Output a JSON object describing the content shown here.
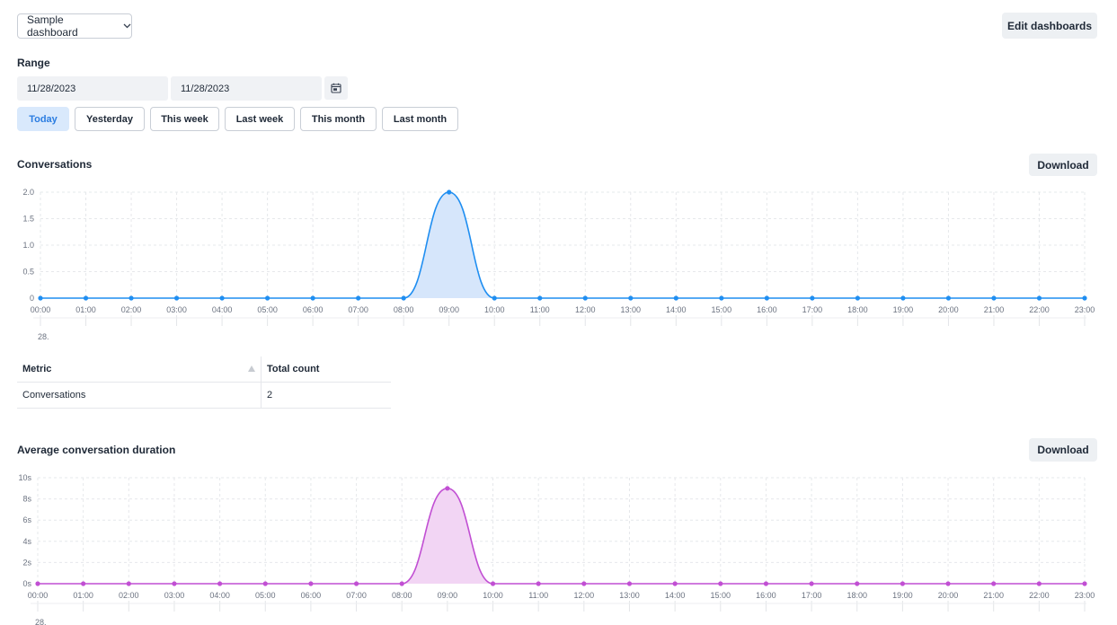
{
  "dashboard_select": {
    "label": "Sample dashboard"
  },
  "edit_dashboards_label": "Edit dashboards",
  "range": {
    "label": "Range",
    "from": "11/28/2023",
    "to": "11/28/2023",
    "presets": [
      "Today",
      "Yesterday",
      "This week",
      "Last week",
      "This month",
      "Last month"
    ],
    "active_preset": "Today"
  },
  "conversations": {
    "title": "Conversations",
    "download_label": "Download"
  },
  "metric_table": {
    "headers": [
      "Metric",
      "Total count"
    ],
    "rows": [
      [
        "Conversations",
        "2"
      ]
    ]
  },
  "avg_duration": {
    "title": "Average conversation duration",
    "download_label": "Download"
  },
  "colors": {
    "blue": "#1f8ef1",
    "blue_fill": "#d6e6fb",
    "purple": "#c14fd3",
    "purple_fill": "#f2d5f4",
    "active_bg": "#d9e9fc"
  },
  "chart_data": [
    {
      "type": "area",
      "x": [
        "00:00",
        "01:00",
        "02:00",
        "03:00",
        "04:00",
        "05:00",
        "06:00",
        "07:00",
        "08:00",
        "09:00",
        "10:00",
        "11:00",
        "12:00",
        "13:00",
        "14:00",
        "15:00",
        "16:00",
        "17:00",
        "18:00",
        "19:00",
        "20:00",
        "21:00",
        "22:00",
        "23:00"
      ],
      "series": [
        {
          "values": [
            0,
            0,
            0,
            0,
            0,
            0,
            0,
            0,
            0,
            2,
            0,
            0,
            0,
            0,
            0,
            0,
            0,
            0,
            0,
            0,
            0,
            0,
            0,
            0
          ]
        }
      ],
      "yticks": [
        "0",
        "0.5",
        "1.0",
        "1.5",
        "2.0"
      ],
      "ylim": [
        0,
        2
      ],
      "date_label": "28.",
      "grid": true
    },
    {
      "type": "area",
      "x": [
        "00:00",
        "01:00",
        "02:00",
        "03:00",
        "04:00",
        "05:00",
        "06:00",
        "07:00",
        "08:00",
        "09:00",
        "10:00",
        "11:00",
        "12:00",
        "13:00",
        "14:00",
        "15:00",
        "16:00",
        "17:00",
        "18:00",
        "19:00",
        "20:00",
        "21:00",
        "22:00",
        "23:00"
      ],
      "series": [
        {
          "values": [
            0,
            0,
            0,
            0,
            0,
            0,
            0,
            0,
            0,
            9,
            0,
            0,
            0,
            0,
            0,
            0,
            0,
            0,
            0,
            0,
            0,
            0,
            0,
            0
          ]
        }
      ],
      "yticks": [
        "0s",
        "2s",
        "4s",
        "6s",
        "8s",
        "10s"
      ],
      "ylim": [
        0,
        10
      ],
      "date_label": "28.",
      "grid": true
    }
  ]
}
